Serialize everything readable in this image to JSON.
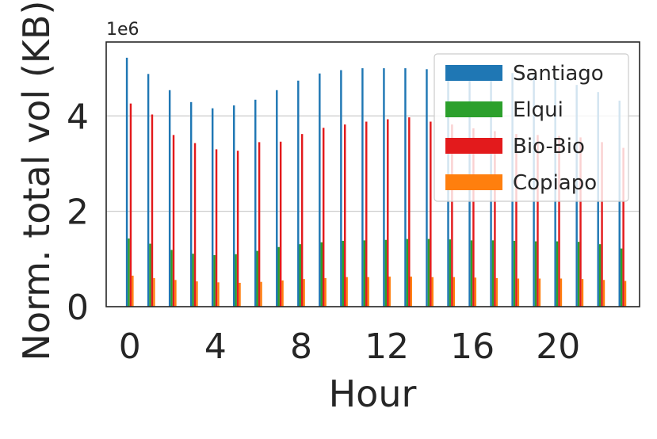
{
  "chart_data": {
    "type": "bar",
    "title": "",
    "xlabel": "Hour",
    "ylabel": "Norm. total vol (KB)",
    "y_offset_text": "1e6",
    "categories": [
      0,
      1,
      2,
      3,
      4,
      5,
      6,
      7,
      8,
      9,
      10,
      11,
      12,
      13,
      14,
      15,
      16,
      17,
      18,
      19,
      20,
      21,
      22,
      23
    ],
    "xticks": [
      0,
      4,
      8,
      12,
      16,
      20
    ],
    "yticks": [
      0,
      2,
      4
    ],
    "xlim": [
      -1.1,
      23.8
    ],
    "ylim": [
      0,
      5.55
    ],
    "y_scale_factor": 1000000,
    "grid": true,
    "legend_position": "top-right",
    "series": [
      {
        "name": "Santiago",
        "color": "#1f77b4",
        "values": [
          5.22,
          4.88,
          4.54,
          4.29,
          4.16,
          4.22,
          4.34,
          4.54,
          4.74,
          4.89,
          4.96,
          5.0,
          5.0,
          5.0,
          4.98,
          4.98,
          4.95,
          4.93,
          4.9,
          4.85,
          4.78,
          4.65,
          4.5,
          4.32
        ]
      },
      {
        "name": "Elqui",
        "color": "#2ca02c",
        "values": [
          1.43,
          1.32,
          1.19,
          1.11,
          1.08,
          1.1,
          1.17,
          1.25,
          1.31,
          1.35,
          1.38,
          1.39,
          1.4,
          1.42,
          1.42,
          1.41,
          1.39,
          1.39,
          1.38,
          1.37,
          1.37,
          1.36,
          1.31,
          1.22
        ]
      },
      {
        "name": "Bio-Bio",
        "color": "#e31a1c",
        "values": [
          4.26,
          4.03,
          3.6,
          3.43,
          3.3,
          3.27,
          3.45,
          3.46,
          3.62,
          3.75,
          3.82,
          3.88,
          3.93,
          3.97,
          3.88,
          3.82,
          3.74,
          3.68,
          3.62,
          3.6,
          3.58,
          3.55,
          3.45,
          3.33
        ]
      },
      {
        "name": "Copiapo",
        "color": "#ff7f0e",
        "values": [
          0.65,
          0.6,
          0.56,
          0.53,
          0.51,
          0.5,
          0.52,
          0.55,
          0.58,
          0.6,
          0.62,
          0.62,
          0.63,
          0.63,
          0.62,
          0.62,
          0.61,
          0.6,
          0.59,
          0.59,
          0.59,
          0.58,
          0.56,
          0.54
        ]
      }
    ]
  }
}
